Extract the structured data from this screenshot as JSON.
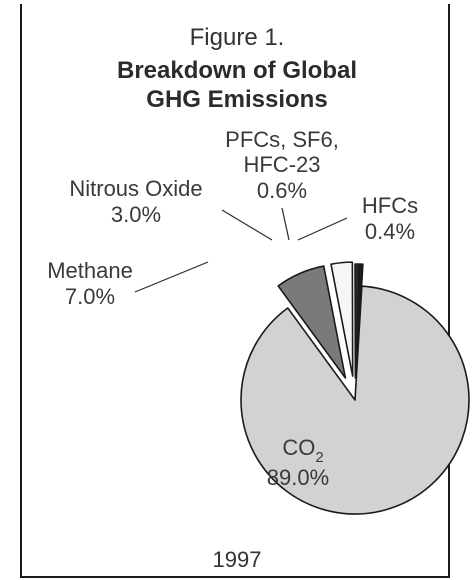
{
  "figure_label": "Figure 1.",
  "title_line1": "Breakdown of Global",
  "title_line2": "GHG Emissions",
  "year": "1997",
  "chart_data": {
    "type": "pie",
    "title": "Breakdown of Global GHG Emissions",
    "subtitle": "1997",
    "unit": "%",
    "slices": [
      {
        "key": "hfcs",
        "label": "HFCs",
        "value": 0.4,
        "value_label": "0.4%",
        "color": "#1e1e1e"
      },
      {
        "key": "co2",
        "label": "CO2",
        "value": 89.0,
        "value_label": "89.0%",
        "color": "#d2d2d2"
      },
      {
        "key": "methane",
        "label": "Methane",
        "value": 7.0,
        "value_label": "7.0%",
        "color": "#7a7a7a"
      },
      {
        "key": "nitrous",
        "label": "Nitrous Oxide",
        "value": 3.0,
        "value_label": "3.0%",
        "color": "#f6f6f6"
      },
      {
        "key": "pfcs",
        "label_lines": [
          "PFCs, SF6,",
          "HFC-23"
        ],
        "value": 0.6,
        "value_label": "0.6%",
        "color": "#2a2a2a"
      }
    ],
    "co2_label": {
      "base": "CO",
      "subscript": "2"
    }
  }
}
